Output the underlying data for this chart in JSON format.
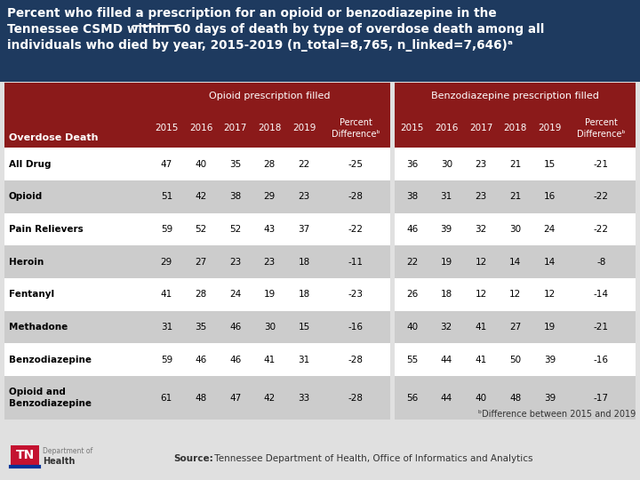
{
  "title_line1": "Percent who filled a prescription for an opioid or benzodiazepine in the",
  "title_line2": "Tennessee CSMD within 60 days of death by type of overdose death among all",
  "title_line3": "individuals who died by year, 2015-2019 (n_total=8,765, n_linked=7,646)ᵃ",
  "title_bg": "#1e3a5f",
  "title_color": "#ffffff",
  "header_bg": "#8b1a1a",
  "header_color": "#ffffff",
  "row_odd_bg": "#ffffff",
  "row_even_bg": "#cccccc",
  "row_text_color": "#000000",
  "col_header": "Overdose Death",
  "opioid_label": "Opioid prescription filled",
  "benzo_label": "Benzodiazepine prescription filled",
  "years": [
    "2015",
    "2016",
    "2017",
    "2018",
    "2019"
  ],
  "diff_label": "Percent\nDifferenceᵇ",
  "rows": [
    {
      "name": "All Drug",
      "opioid": [
        47,
        40,
        35,
        28,
        22
      ],
      "opioid_diff": -25,
      "benzo": [
        36,
        30,
        23,
        21,
        15
      ],
      "benzo_diff": -21
    },
    {
      "name": "Opioid",
      "opioid": [
        51,
        42,
        38,
        29,
        23
      ],
      "opioid_diff": -28,
      "benzo": [
        38,
        31,
        23,
        21,
        16
      ],
      "benzo_diff": -22
    },
    {
      "name": "Pain Relievers",
      "opioid": [
        59,
        52,
        52,
        43,
        37
      ],
      "opioid_diff": -22,
      "benzo": [
        46,
        39,
        32,
        30,
        24
      ],
      "benzo_diff": -22
    },
    {
      "name": "Heroin",
      "opioid": [
        29,
        27,
        23,
        23,
        18
      ],
      "opioid_diff": -11,
      "benzo": [
        22,
        19,
        12,
        14,
        14
      ],
      "benzo_diff": -8
    },
    {
      "name": "Fentanyl",
      "opioid": [
        41,
        28,
        24,
        19,
        18
      ],
      "opioid_diff": -23,
      "benzo": [
        26,
        18,
        12,
        12,
        12
      ],
      "benzo_diff": -14
    },
    {
      "name": "Methadone",
      "opioid": [
        31,
        35,
        46,
        30,
        15
      ],
      "opioid_diff": -16,
      "benzo": [
        40,
        32,
        41,
        27,
        19
      ],
      "benzo_diff": -21
    },
    {
      "name": "Benzodiazepine",
      "opioid": [
        59,
        46,
        46,
        41,
        31
      ],
      "opioid_diff": -28,
      "benzo": [
        55,
        44,
        41,
        50,
        39
      ],
      "benzo_diff": -16
    },
    {
      "name": "Opioid and\nBenzodiazepine",
      "opioid": [
        61,
        48,
        47,
        42,
        33
      ],
      "opioid_diff": -28,
      "benzo": [
        56,
        44,
        40,
        48,
        39
      ],
      "benzo_diff": -17
    }
  ],
  "footnote": "ᵇDifference between 2015 and 2019",
  "source_bold": "Source:",
  "source_text": " Tennessee Department of Health, Office of Informatics and Analytics",
  "bg_color": "#e0e0e0",
  "logo_red": "#c41230",
  "logo_blue": "#003399"
}
